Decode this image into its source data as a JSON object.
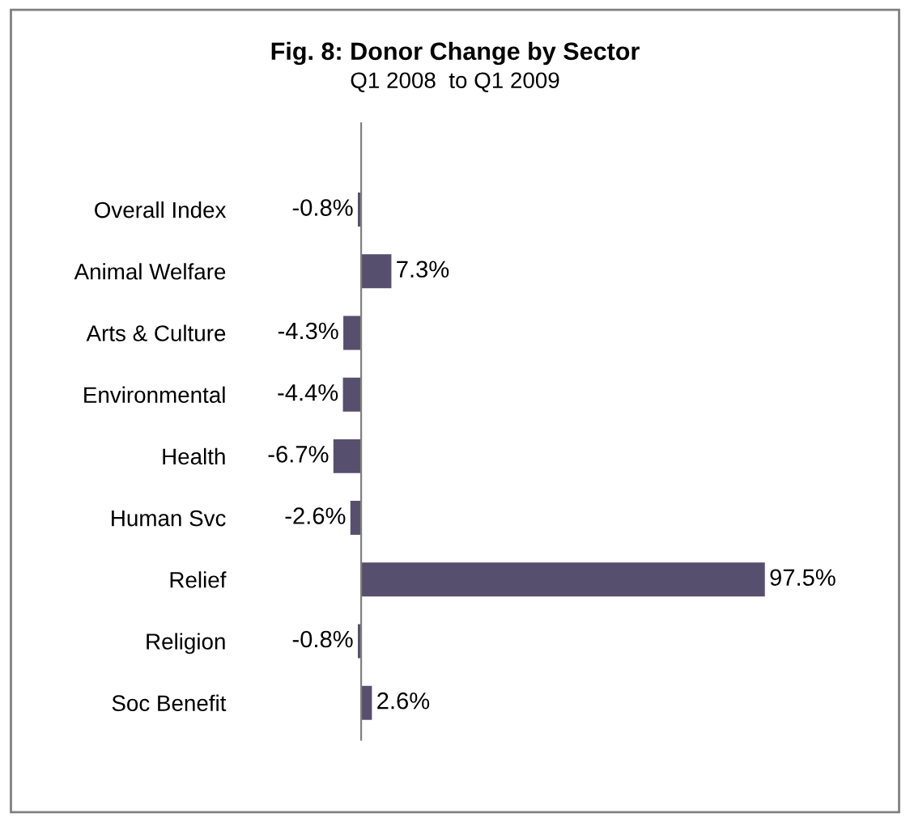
{
  "chart_data": {
    "type": "bar",
    "orientation": "horizontal",
    "title": "Fig. 8: Donor Change by Sector",
    "subtitle": "Q1 2008  to Q1 2009",
    "categories": [
      "Overall Index",
      "Animal Welfare",
      "Arts & Culture",
      "Environmental",
      "Health",
      "Human Svc",
      "Relief",
      "Religion",
      "Soc Benefit"
    ],
    "values": [
      -0.8,
      7.3,
      -4.3,
      -4.4,
      -6.7,
      -2.6,
      97.5,
      -0.8,
      2.6
    ],
    "value_labels": [
      "-0.8%",
      "7.3%",
      "-4.3%",
      "-4.4%",
      "-6.7%",
      "-2.6%",
      "97.5%",
      "-0.8%",
      "2.6%"
    ],
    "color": "#564f6e",
    "grid": false,
    "legend": false
  }
}
